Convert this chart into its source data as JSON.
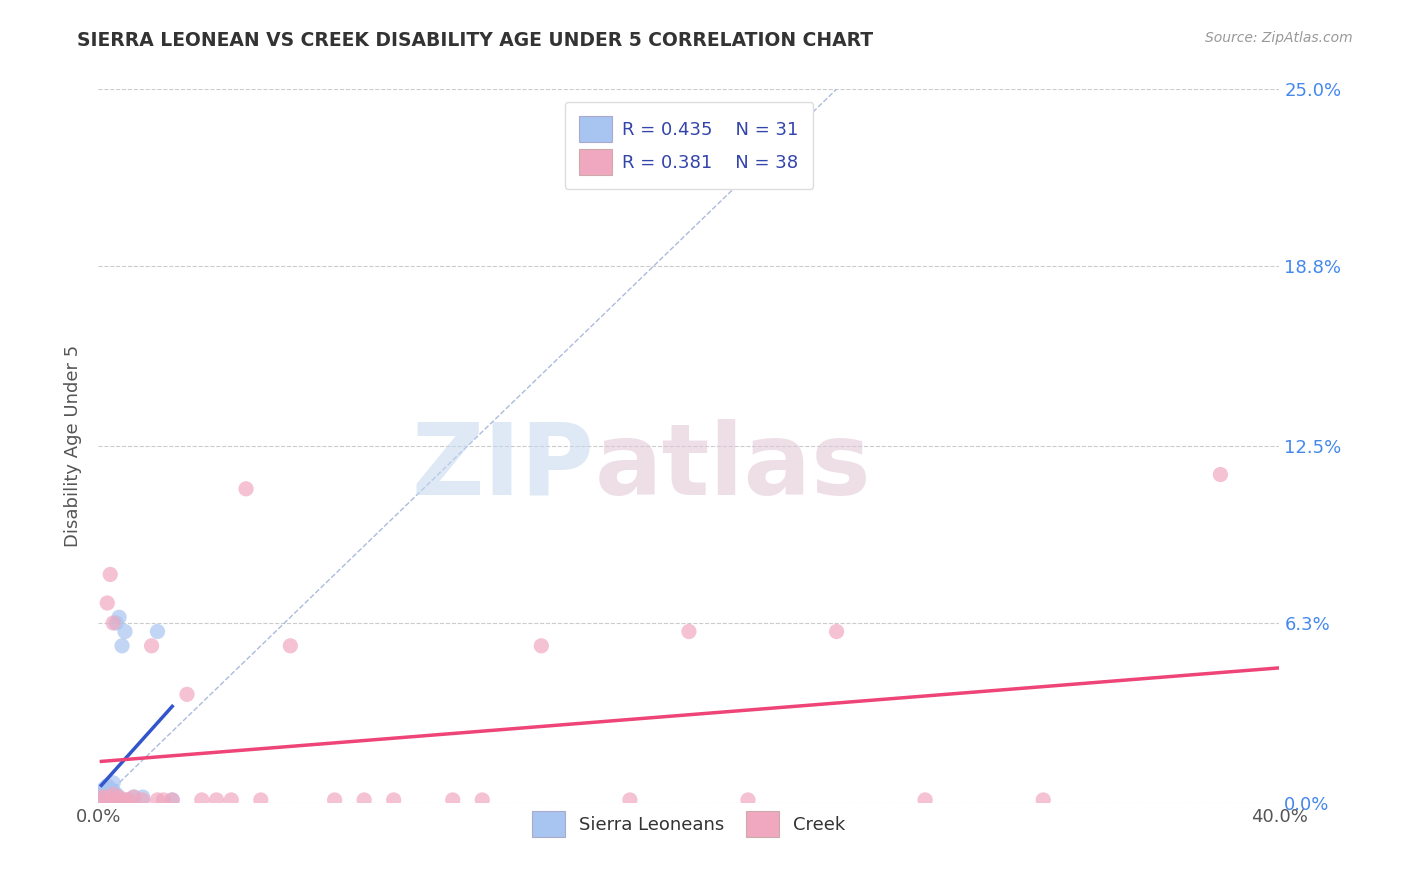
{
  "title": "SIERRA LEONEAN VS CREEK DISABILITY AGE UNDER 5 CORRELATION CHART",
  "source": "Source: ZipAtlas.com",
  "ylabel": "Disability Age Under 5",
  "xlim": [
    0.0,
    0.4
  ],
  "ylim": [
    0.0,
    0.25
  ],
  "xtick_labels": [
    "0.0%",
    "40.0%"
  ],
  "xtick_vals": [
    0.0,
    0.4
  ],
  "ytick_labels": [
    "0.0%",
    "6.3%",
    "12.5%",
    "18.8%",
    "25.0%"
  ],
  "ytick_vals": [
    0.0,
    0.063,
    0.125,
    0.188,
    0.25
  ],
  "grid_color": "#cccccc",
  "background_color": "#ffffff",
  "legend_r1": "R = 0.435",
  "legend_n1": "N = 31",
  "legend_r2": "R = 0.381",
  "legend_n2": "N = 38",
  "sierra_color": "#a8c4f0",
  "creek_color": "#f0a8c0",
  "sierra_line_color": "#3355cc",
  "creek_line_color": "#ee4477",
  "diagonal_color": "#aabbdd",
  "watermark_zip": "ZIP",
  "watermark_atlas": "atlas",
  "right_tick_color": "#4488ee",
  "sierra_x": [
    0.001,
    0.001,
    0.001,
    0.002,
    0.002,
    0.002,
    0.002,
    0.003,
    0.003,
    0.003,
    0.003,
    0.004,
    0.004,
    0.004,
    0.004,
    0.005,
    0.005,
    0.005,
    0.005,
    0.006,
    0.006,
    0.006,
    0.007,
    0.007,
    0.008,
    0.009,
    0.01,
    0.012,
    0.015,
    0.02,
    0.025
  ],
  "sierra_y": [
    0.002,
    0.003,
    0.004,
    0.001,
    0.002,
    0.003,
    0.005,
    0.001,
    0.002,
    0.004,
    0.006,
    0.001,
    0.002,
    0.003,
    0.005,
    0.001,
    0.002,
    0.004,
    0.007,
    0.002,
    0.003,
    0.063,
    0.065,
    0.001,
    0.055,
    0.06,
    0.001,
    0.002,
    0.002,
    0.06,
    0.001
  ],
  "creek_x": [
    0.001,
    0.002,
    0.003,
    0.003,
    0.004,
    0.005,
    0.005,
    0.006,
    0.007,
    0.008,
    0.009,
    0.01,
    0.012,
    0.015,
    0.018,
    0.02,
    0.022,
    0.025,
    0.03,
    0.035,
    0.04,
    0.045,
    0.05,
    0.055,
    0.065,
    0.08,
    0.09,
    0.1,
    0.12,
    0.13,
    0.15,
    0.18,
    0.2,
    0.22,
    0.25,
    0.28,
    0.32,
    0.38
  ],
  "creek_y": [
    0.002,
    0.001,
    0.002,
    0.07,
    0.08,
    0.003,
    0.063,
    0.001,
    0.002,
    0.001,
    0.001,
    0.001,
    0.002,
    0.001,
    0.055,
    0.001,
    0.001,
    0.001,
    0.038,
    0.001,
    0.001,
    0.001,
    0.11,
    0.001,
    0.055,
    0.001,
    0.001,
    0.001,
    0.001,
    0.001,
    0.055,
    0.001,
    0.06,
    0.001,
    0.06,
    0.001,
    0.001,
    0.115
  ]
}
